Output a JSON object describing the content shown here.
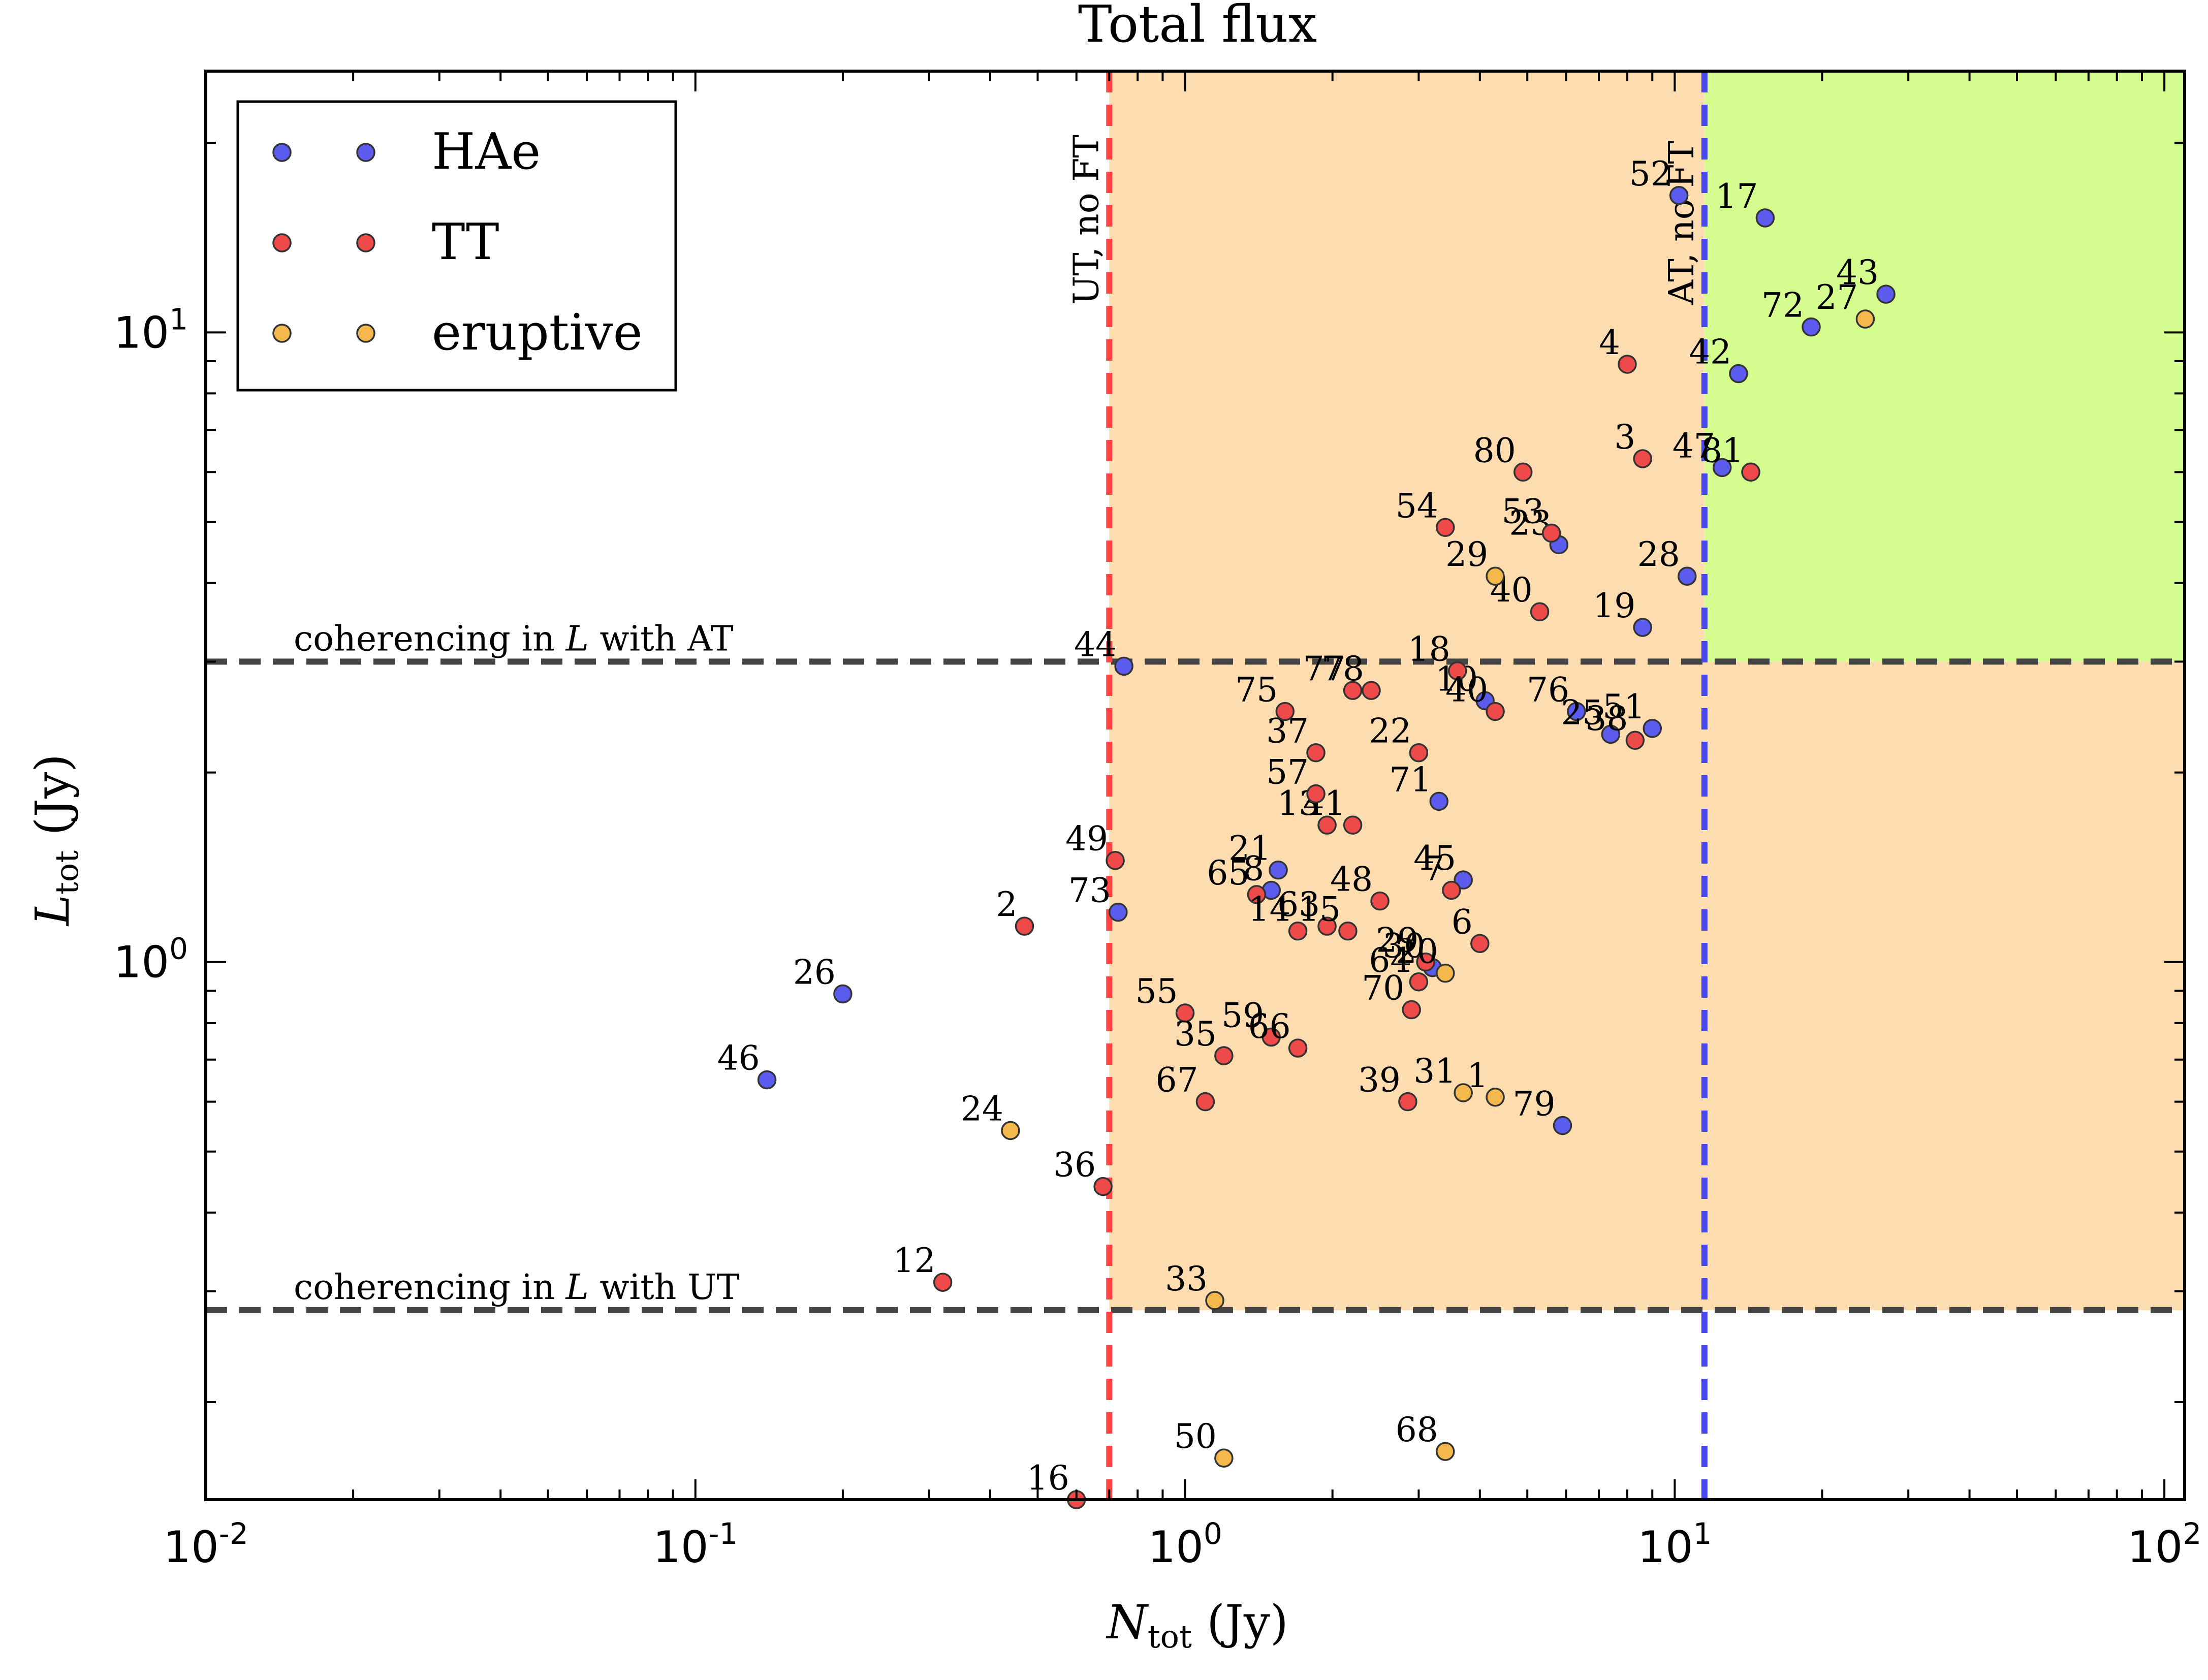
{
  "chart_data": {
    "type": "scatter",
    "title": "Total flux",
    "xlabel": {
      "main": "N",
      "sub": "tot",
      "unit": " (Jy)"
    },
    "ylabel": {
      "main": "L",
      "sub": "tot",
      "unit": " (Jy)"
    },
    "xscale": "log",
    "yscale": "log",
    "xlim": [
      0.01,
      110
    ],
    "ylim": [
      0.14,
      26
    ],
    "x_ticks": [
      {
        "value": 0.01,
        "base": "10",
        "exp": "-2"
      },
      {
        "value": 0.1,
        "base": "10",
        "exp": "-1"
      },
      {
        "value": 1,
        "base": "10",
        "exp": "0"
      },
      {
        "value": 10,
        "base": "10",
        "exp": "1"
      },
      {
        "value": 100,
        "base": "10",
        "exp": "2"
      }
    ],
    "y_ticks": [
      {
        "value": 1,
        "base": "10",
        "exp": "0"
      },
      {
        "value": 10,
        "base": "10",
        "exp": "1"
      }
    ],
    "grid": false,
    "legend_position": "top-left",
    "colors": {
      "HAe": "#5b5bee",
      "TT": "#ee4a4a",
      "eruptive": "#f4b84d"
    },
    "regions": [
      {
        "x": [
          0.7,
          11.5
        ],
        "y": [
          0.28,
          3.0
        ],
        "color": "#fddcb0"
      },
      {
        "x": [
          0.7,
          11.5
        ],
        "y": [
          3.0,
          26
        ],
        "color": "#fddcb0"
      },
      {
        "x": [
          11.5,
          110
        ],
        "y": [
          0.28,
          3.0
        ],
        "color": "#fddcb0"
      },
      {
        "x": [
          11.5,
          110
        ],
        "y": [
          3.0,
          26
        ],
        "color": "#d5fc8f"
      }
    ],
    "vlines": [
      {
        "x": 0.7,
        "color": "#ff4444",
        "label": "UT, no FT"
      },
      {
        "x": 11.5,
        "color": "#4747ee",
        "label": "AT, no FT"
      }
    ],
    "hlines": [
      {
        "y": 3.0,
        "color": "#454545",
        "label_pre": "coherencing in ",
        "label_var": "L",
        "label_post": " with AT"
      },
      {
        "y": 0.28,
        "color": "#454545",
        "label_pre": "coherencing in ",
        "label_var": "L",
        "label_post": " with UT"
      }
    ],
    "series": [
      {
        "name": "HAe",
        "points": [
          {
            "label": "26",
            "x": 0.2,
            "y": 0.89
          },
          {
            "label": "46",
            "x": 0.14,
            "y": 0.65
          },
          {
            "label": "44",
            "x": 0.75,
            "y": 2.95
          },
          {
            "label": "73",
            "x": 0.73,
            "y": 1.2
          },
          {
            "label": "21",
            "x": 1.55,
            "y": 1.4
          },
          {
            "label": "8",
            "x": 1.5,
            "y": 1.3
          },
          {
            "label": "71",
            "x": 3.3,
            "y": 1.8
          },
          {
            "label": "45",
            "x": 3.7,
            "y": 1.35
          },
          {
            "label": "30",
            "x": 3.2,
            "y": 0.98
          },
          {
            "label": "79",
            "x": 5.9,
            "y": 0.55
          },
          {
            "label": "10",
            "x": 4.1,
            "y": 2.6
          },
          {
            "label": "76",
            "x": 6.3,
            "y": 2.5
          },
          {
            "label": "25",
            "x": 7.4,
            "y": 2.3
          },
          {
            "label": "51",
            "x": 9.0,
            "y": 2.35
          },
          {
            "label": "19",
            "x": 8.6,
            "y": 3.4
          },
          {
            "label": "28",
            "x": 10.6,
            "y": 4.1
          },
          {
            "label": "23",
            "x": 5.8,
            "y": 4.6
          },
          {
            "label": "52",
            "x": 10.2,
            "y": 16.5
          },
          {
            "label": "17",
            "x": 15.3,
            "y": 15.2
          },
          {
            "label": "72",
            "x": 19.0,
            "y": 10.2
          },
          {
            "label": "43",
            "x": 27.0,
            "y": 11.5
          },
          {
            "label": "42",
            "x": 13.5,
            "y": 8.6
          },
          {
            "label": "47",
            "x": 12.5,
            "y": 6.1
          }
        ]
      },
      {
        "name": "TT",
        "points": [
          {
            "label": "2",
            "x": 0.47,
            "y": 1.14
          },
          {
            "label": "12",
            "x": 0.32,
            "y": 0.31
          },
          {
            "label": "36",
            "x": 0.68,
            "y": 0.44
          },
          {
            "label": "16",
            "x": 0.6,
            "y": 0.14
          },
          {
            "label": "49",
            "x": 0.72,
            "y": 1.45
          },
          {
            "label": "55",
            "x": 1.0,
            "y": 0.83
          },
          {
            "label": "35",
            "x": 1.2,
            "y": 0.71
          },
          {
            "label": "59",
            "x": 1.5,
            "y": 0.76
          },
          {
            "label": "66",
            "x": 1.7,
            "y": 0.73
          },
          {
            "label": "67",
            "x": 1.1,
            "y": 0.6
          },
          {
            "label": "65",
            "x": 1.4,
            "y": 1.28
          },
          {
            "label": "14",
            "x": 1.7,
            "y": 1.12
          },
          {
            "label": "63",
            "x": 1.95,
            "y": 1.14
          },
          {
            "label": "15",
            "x": 2.15,
            "y": 1.12
          },
          {
            "label": "48",
            "x": 2.5,
            "y": 1.25
          },
          {
            "label": "13",
            "x": 1.95,
            "y": 1.65
          },
          {
            "label": "41",
            "x": 2.2,
            "y": 1.65
          },
          {
            "label": "57",
            "x": 1.85,
            "y": 1.85
          },
          {
            "label": "37",
            "x": 1.85,
            "y": 2.15
          },
          {
            "label": "75",
            "x": 1.6,
            "y": 2.5
          },
          {
            "label": "77",
            "x": 2.2,
            "y": 2.7
          },
          {
            "label": "78",
            "x": 2.4,
            "y": 2.7
          },
          {
            "label": "22",
            "x": 3.0,
            "y": 2.15
          },
          {
            "label": "18",
            "x": 3.6,
            "y": 2.9
          },
          {
            "label": "40",
            "x": 4.3,
            "y": 2.5
          },
          {
            "label": "7",
            "x": 3.5,
            "y": 1.3
          },
          {
            "label": "6",
            "x": 4.0,
            "y": 1.07
          },
          {
            "label": "29",
            "x": 3.1,
            "y": 1.0
          },
          {
            "label": "64",
            "x": 3.0,
            "y": 0.93
          },
          {
            "label": "70",
            "x": 2.9,
            "y": 0.84
          },
          {
            "label": "39",
            "x": 2.85,
            "y": 0.6
          },
          {
            "label": "54",
            "x": 3.4,
            "y": 4.9
          },
          {
            "label": "80",
            "x": 4.9,
            "y": 6.0
          },
          {
            "label": "53",
            "x": 5.6,
            "y": 4.8
          },
          {
            "label": "40",
            "x": 5.3,
            "y": 3.6
          },
          {
            "label": "38",
            "x": 8.3,
            "y": 2.25
          },
          {
            "label": "4",
            "x": 8.0,
            "y": 8.9
          },
          {
            "label": "3",
            "x": 8.6,
            "y": 6.3
          },
          {
            "label": "81",
            "x": 14.3,
            "y": 6.0
          }
        ]
      },
      {
        "name": "eruptive",
        "points": [
          {
            "label": "24",
            "x": 0.44,
            "y": 0.54
          },
          {
            "label": "33",
            "x": 1.15,
            "y": 0.29
          },
          {
            "label": "50",
            "x": 1.2,
            "y": 0.163
          },
          {
            "label": "68",
            "x": 3.4,
            "y": 0.167
          },
          {
            "label": "31",
            "x": 3.7,
            "y": 0.62
          },
          {
            "label": "1",
            "x": 4.3,
            "y": 0.61
          },
          {
            "label": "20",
            "x": 3.4,
            "y": 0.96
          },
          {
            "label": "29",
            "x": 4.3,
            "y": 4.1
          },
          {
            "label": "27",
            "x": 24.5,
            "y": 10.5
          }
        ]
      }
    ]
  }
}
